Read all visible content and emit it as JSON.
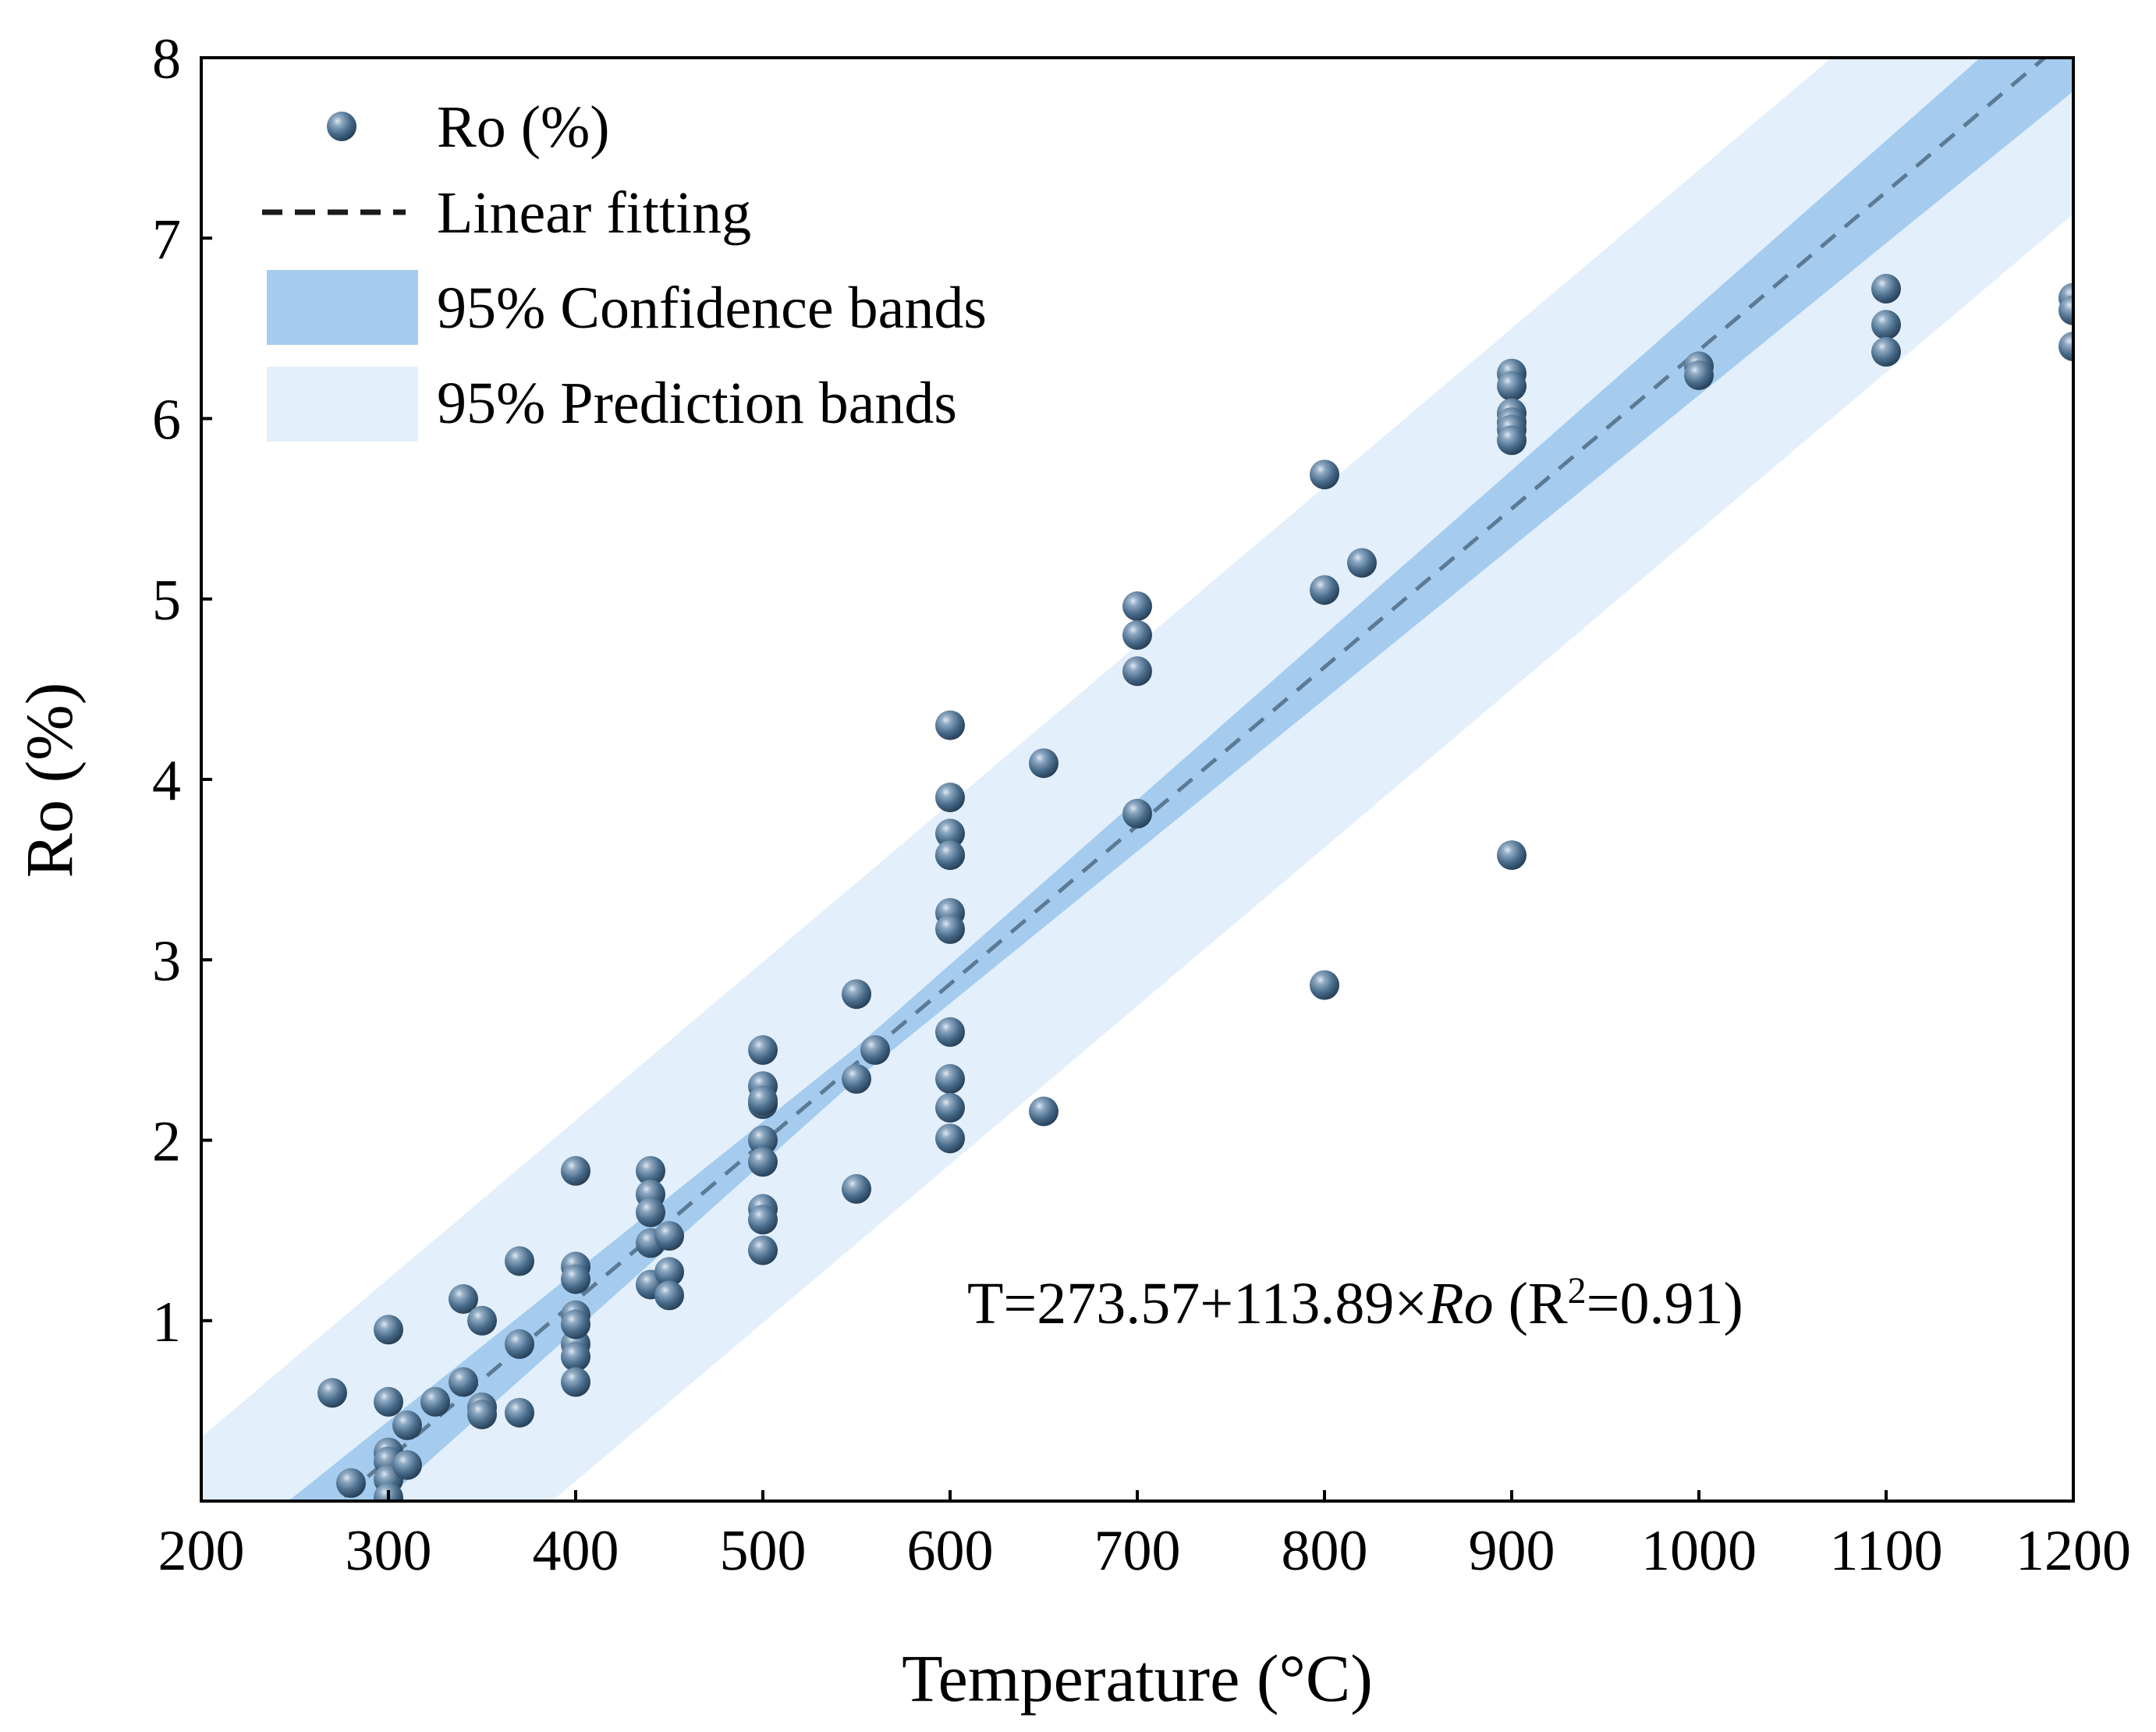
{
  "chart_data": {
    "type": "scatter",
    "title": "",
    "xlabel": "Temperature (°C)",
    "ylabel": "Ro (%)",
    "xlim": [
      200,
      1200
    ],
    "ylim": [
      0,
      8
    ],
    "xticks": [
      200,
      300,
      400,
      500,
      600,
      700,
      800,
      900,
      1000,
      1100,
      1200
    ],
    "yticks": [
      1,
      2,
      3,
      4,
      5,
      6,
      7,
      8
    ],
    "legend": {
      "position": "top-left",
      "entries": [
        {
          "label": "Ro (%)",
          "kind": "marker"
        },
        {
          "label": "Linear fitting",
          "kind": "dashed-line"
        },
        {
          "label": "95% Confidence bands",
          "kind": "band"
        },
        {
          "label": "95% Prediction bands",
          "kind": "band"
        }
      ]
    },
    "annotation": {
      "prefix": "T=273.57+113.89×",
      "variable": "Ro",
      "mid": " (R",
      "sup": "2",
      "suffix": "=0.91)"
    },
    "fit": {
      "intercept": 273.57,
      "slope": 113.89
    },
    "confidence_band": {
      "x": [
        200,
        550,
        1200
      ],
      "half_width": [
        0.26,
        0.09,
        0.32
      ]
    },
    "prediction_band": {
      "half_width": 1.0
    },
    "colors": {
      "marker": "#4a6d8c",
      "marker_dark": "#2b4660",
      "marker_highlight": "#c9d9e8",
      "fit_line": "#5c7a94",
      "confidence": "#a5ccef",
      "prediction": "#e3effb",
      "axis": "#000000"
    },
    "series": [
      {
        "name": "Ro (%)",
        "x": [
          270,
          280,
          300,
          300,
          300,
          300,
          300,
          300,
          310,
          310,
          325,
          340,
          340,
          350,
          350,
          350,
          370,
          370,
          370,
          400,
          400,
          400,
          400,
          400,
          400,
          400,
          400,
          440,
          440,
          440,
          440,
          440,
          450,
          450,
          450,
          500,
          500,
          500,
          500,
          500,
          500,
          500,
          500,
          500,
          550,
          550,
          550,
          560,
          600,
          600,
          600,
          600,
          600,
          600,
          600,
          600,
          600,
          600,
          600,
          650,
          650,
          700,
          700,
          700,
          700,
          800,
          800,
          800,
          820,
          900,
          900,
          900,
          900,
          900,
          900,
          900,
          1000,
          1000,
          1100,
          1100,
          1100,
          1200,
          1200,
          1200
        ],
        "y": [
          0.6,
          0.1,
          0.95,
          0.55,
          0.27,
          0.22,
          0.12,
          0.02,
          0.42,
          0.2,
          0.55,
          1.12,
          0.66,
          1.0,
          0.52,
          0.48,
          1.33,
          0.87,
          0.49,
          1.83,
          1.3,
          1.23,
          1.03,
          0.87,
          0.8,
          0.66,
          0.98,
          1.83,
          1.7,
          1.6,
          1.43,
          1.2,
          1.47,
          1.27,
          1.14,
          2.5,
          2.3,
          2.2,
          2.0,
          1.88,
          1.62,
          1.56,
          1.39,
          2.22,
          2.81,
          2.34,
          1.73,
          2.5,
          4.3,
          3.9,
          3.7,
          3.58,
          3.26,
          3.17,
          2.6,
          2.34,
          2.18,
          2.01,
          3.58,
          4.09,
          2.16,
          4.96,
          4.8,
          4.6,
          3.81,
          5.69,
          5.05,
          2.86,
          5.2,
          6.25,
          6.18,
          6.03,
          5.98,
          5.94,
          5.88,
          3.58,
          6.29,
          6.24,
          6.72,
          6.52,
          6.37,
          6.67,
          6.6,
          6.4
        ]
      }
    ]
  }
}
